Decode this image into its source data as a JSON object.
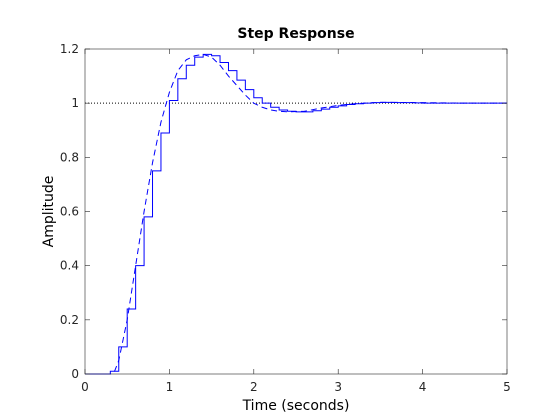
{
  "chart_data": {
    "type": "line",
    "title": "Step Response",
    "xlabel": "Time (seconds)",
    "ylabel": "Amplitude",
    "xlim": [
      0,
      5
    ],
    "ylim": [
      0,
      1.2
    ],
    "x_ticks": [
      "0",
      "1",
      "2",
      "3",
      "4",
      "5"
    ],
    "y_ticks": [
      "0",
      "0.2",
      "0.4",
      "0.6",
      "0.8",
      "1",
      "1.2"
    ],
    "grid": false,
    "reference_line": {
      "y": 1,
      "style": "dotted",
      "color": "#000000"
    },
    "series": [
      {
        "style": "dashed",
        "color": "#0000ff",
        "x": [
          0,
          0.3,
          0.35,
          0.4,
          0.5,
          0.6,
          0.7,
          0.8,
          0.9,
          1.0,
          1.1,
          1.2,
          1.3,
          1.4,
          1.5,
          1.6,
          1.7,
          1.8,
          1.9,
          2.0,
          2.1,
          2.2,
          2.3,
          2.4,
          2.6,
          2.8,
          3.0,
          3.2,
          3.5,
          4.0,
          4.5,
          5.0
        ],
        "y": [
          0,
          0,
          0.01,
          0.05,
          0.2,
          0.4,
          0.6,
          0.78,
          0.93,
          1.04,
          1.12,
          1.16,
          1.175,
          1.18,
          1.17,
          1.14,
          1.1,
          1.065,
          1.03,
          1.0,
          0.985,
          0.975,
          0.97,
          0.968,
          0.97,
          0.982,
          0.992,
          0.998,
          1.003,
          1.002,
          1.0,
          1.0
        ]
      },
      {
        "style": "stairs",
        "color": "#0000ff",
        "x": [
          0,
          0.3,
          0.4,
          0.5,
          0.6,
          0.7,
          0.8,
          0.9,
          1.0,
          1.1,
          1.2,
          1.3,
          1.4,
          1.5,
          1.6,
          1.7,
          1.8,
          1.9,
          2.0,
          2.1,
          2.2,
          2.3,
          2.4,
          2.5,
          2.6,
          2.7,
          2.8,
          2.9,
          3.0,
          3.1,
          3.2,
          3.3,
          3.4,
          3.5,
          3.6,
          3.7,
          3.8,
          3.9,
          4.0,
          4.2,
          4.4,
          4.6,
          4.8,
          5.0
        ],
        "y": [
          0,
          0.01,
          0.1,
          0.24,
          0.4,
          0.58,
          0.75,
          0.89,
          1.01,
          1.09,
          1.14,
          1.17,
          1.18,
          1.175,
          1.15,
          1.12,
          1.085,
          1.05,
          1.02,
          1.0,
          0.985,
          0.975,
          0.97,
          0.968,
          0.968,
          0.972,
          0.978,
          0.985,
          0.99,
          0.995,
          0.998,
          1.0,
          1.002,
          1.003,
          1.003,
          1.002,
          1.002,
          1.001,
          1.0,
          1.0,
          1.0,
          1.0,
          1.0,
          1.0
        ]
      }
    ]
  }
}
